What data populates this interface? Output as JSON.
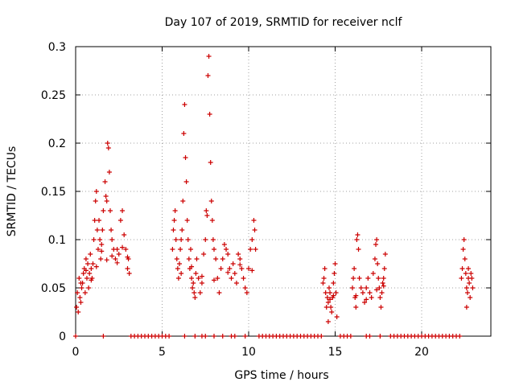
{
  "chart_data": {
    "type": "scatter",
    "title": "Day 107 of 2019, SRMTID for receiver nclf",
    "xlabel": "GPS time / hours",
    "ylabel": "SRMTID / TECUs",
    "xlim": [
      0,
      24
    ],
    "ylim": [
      0,
      0.3
    ],
    "x_ticks": [
      0,
      5,
      10,
      15,
      20
    ],
    "y_ticks": [
      0,
      0.05,
      0.1,
      0.15,
      0.2,
      0.25,
      0.3
    ],
    "x_tick_labels": [
      "0",
      "5",
      "10",
      "15",
      "20"
    ],
    "y_tick_labels": [
      "0",
      "0.05",
      "0.1",
      "0.15",
      "0.2",
      "0.25",
      "0.3"
    ],
    "grid": true,
    "marker": "+",
    "color": "#cc0000",
    "series": [
      {
        "name": "SRMTID",
        "points": [
          [
            0.05,
            0.03
          ],
          [
            0.1,
            0.045
          ],
          [
            0.15,
            0.025
          ],
          [
            0.2,
            0.06
          ],
          [
            0.25,
            0.04
          ],
          [
            0.3,
            0.035
          ],
          [
            0.35,
            0.05
          ],
          [
            0.4,
            0.055
          ],
          [
            0.45,
            0.065
          ],
          [
            0.5,
            0.07
          ],
          [
            0.55,
            0.045
          ],
          [
            0.6,
            0.08
          ],
          [
            0.65,
            0.06
          ],
          [
            0.7,
            0.075
          ],
          [
            0.75,
            0.05
          ],
          [
            0.8,
            0.065
          ],
          [
            0.85,
            0.085
          ],
          [
            0.9,
            0.07
          ],
          [
            0.95,
            0.06
          ],
          [
            1.0,
            0.075
          ],
          [
            1.05,
            0.1
          ],
          [
            1.1,
            0.12
          ],
          [
            1.15,
            0.14
          ],
          [
            1.2,
            0.15
          ],
          [
            1.25,
            0.11
          ],
          [
            1.3,
            0.09
          ],
          [
            1.35,
            0.12
          ],
          [
            1.4,
            0.1
          ],
          [
            1.45,
            0.08
          ],
          [
            1.5,
            0.095
          ],
          [
            1.55,
            0.11
          ],
          [
            1.6,
            0.13
          ],
          [
            1.7,
            0.16
          ],
          [
            1.75,
            0.145
          ],
          [
            1.8,
            0.14
          ],
          [
            1.85,
            0.2
          ],
          [
            1.9,
            0.195
          ],
          [
            1.95,
            0.17
          ],
          [
            2.0,
            0.13
          ],
          [
            2.05,
            0.11
          ],
          [
            2.1,
            0.1
          ],
          [
            2.2,
            0.09
          ],
          [
            2.3,
            0.08
          ],
          [
            2.4,
            0.09
          ],
          [
            2.5,
            0.085
          ],
          [
            2.6,
            0.12
          ],
          [
            2.7,
            0.13
          ],
          [
            2.8,
            0.105
          ],
          [
            2.9,
            0.09
          ],
          [
            3.0,
            0.07
          ],
          [
            3.05,
            0.08
          ],
          [
            3.1,
            0.065
          ],
          [
            0.3,
            0.055
          ],
          [
            0.6,
            0.068
          ],
          [
            0.9,
            0.058
          ],
          [
            1.2,
            0.072
          ],
          [
            1.5,
            0.088
          ],
          [
            1.8,
            0.079
          ],
          [
            2.1,
            0.083
          ],
          [
            2.4,
            0.076
          ],
          [
            2.7,
            0.092
          ],
          [
            3.0,
            0.082
          ],
          [
            5.6,
            0.09
          ],
          [
            5.65,
            0.11
          ],
          [
            5.7,
            0.12
          ],
          [
            5.75,
            0.13
          ],
          [
            5.8,
            0.1
          ],
          [
            5.85,
            0.08
          ],
          [
            5.9,
            0.07
          ],
          [
            5.95,
            0.06
          ],
          [
            6.0,
            0.075
          ],
          [
            6.05,
            0.09
          ],
          [
            6.1,
            0.1
          ],
          [
            6.15,
            0.11
          ],
          [
            6.2,
            0.14
          ],
          [
            6.25,
            0.21
          ],
          [
            6.3,
            0.24
          ],
          [
            6.35,
            0.185
          ],
          [
            6.4,
            0.16
          ],
          [
            6.45,
            0.12
          ],
          [
            6.5,
            0.1
          ],
          [
            6.55,
            0.08
          ],
          [
            6.6,
            0.07
          ],
          [
            6.65,
            0.09
          ],
          [
            6.7,
            0.06
          ],
          [
            6.75,
            0.05
          ],
          [
            6.8,
            0.055
          ],
          [
            6.85,
            0.045
          ],
          [
            6.9,
            0.04
          ],
          [
            6.95,
            0.065
          ],
          [
            7.0,
            0.08
          ],
          [
            7.1,
            0.06
          ],
          [
            7.2,
            0.045
          ],
          [
            7.3,
            0.055
          ],
          [
            7.4,
            0.085
          ],
          [
            7.5,
            0.1
          ],
          [
            7.55,
            0.13
          ],
          [
            7.6,
            0.125
          ],
          [
            7.65,
            0.27
          ],
          [
            7.7,
            0.29
          ],
          [
            7.75,
            0.23
          ],
          [
            7.8,
            0.18
          ],
          [
            7.85,
            0.14
          ],
          [
            7.9,
            0.12
          ],
          [
            7.95,
            0.1
          ],
          [
            8.0,
            0.09
          ],
          [
            8.1,
            0.08
          ],
          [
            8.2,
            0.06
          ],
          [
            8.3,
            0.045
          ],
          [
            8.4,
            0.07
          ],
          [
            8.5,
            0.08
          ],
          [
            8.6,
            0.095
          ],
          [
            8.7,
            0.09
          ],
          [
            8.8,
            0.085
          ],
          [
            8.9,
            0.07
          ],
          [
            9.0,
            0.06
          ],
          [
            9.1,
            0.075
          ],
          [
            9.2,
            0.065
          ],
          [
            9.3,
            0.055
          ],
          [
            9.4,
            0.085
          ],
          [
            9.5,
            0.08
          ],
          [
            9.6,
            0.07
          ],
          [
            9.7,
            0.06
          ],
          [
            9.8,
            0.05
          ],
          [
            9.9,
            0.045
          ],
          [
            10.0,
            0.07
          ],
          [
            10.1,
            0.09
          ],
          [
            10.2,
            0.1
          ],
          [
            10.3,
            0.12
          ],
          [
            10.35,
            0.11
          ],
          [
            10.4,
            0.09
          ],
          [
            6.1,
            0.065
          ],
          [
            6.7,
            0.072
          ],
          [
            7.3,
            0.062
          ],
          [
            8.0,
            0.058
          ],
          [
            8.8,
            0.066
          ],
          [
            9.5,
            0.074
          ],
          [
            10.2,
            0.068
          ],
          [
            14.3,
            0.055
          ],
          [
            14.35,
            0.06
          ],
          [
            14.4,
            0.07
          ],
          [
            14.45,
            0.045
          ],
          [
            14.5,
            0.03
          ],
          [
            14.55,
            0.04
          ],
          [
            14.6,
            0.035
          ],
          [
            14.65,
            0.05
          ],
          [
            14.7,
            0.045
          ],
          [
            14.75,
            0.03
          ],
          [
            14.8,
            0.025
          ],
          [
            14.85,
            0.04
          ],
          [
            14.9,
            0.055
          ],
          [
            14.95,
            0.065
          ],
          [
            15.0,
            0.075
          ],
          [
            15.05,
            0.045
          ],
          [
            15.1,
            0.02
          ],
          [
            14.6,
            0.015
          ],
          [
            14.7,
            0.038
          ],
          [
            14.9,
            0.042
          ],
          [
            16.0,
            0.05
          ],
          [
            16.05,
            0.06
          ],
          [
            16.1,
            0.07
          ],
          [
            16.15,
            0.04
          ],
          [
            16.2,
            0.03
          ],
          [
            16.25,
            0.1
          ],
          [
            16.3,
            0.105
          ],
          [
            16.35,
            0.09
          ],
          [
            16.4,
            0.06
          ],
          [
            16.5,
            0.05
          ],
          [
            16.6,
            0.045
          ],
          [
            16.7,
            0.035
          ],
          [
            16.8,
            0.05
          ],
          [
            16.9,
            0.06
          ],
          [
            17.0,
            0.045
          ],
          [
            17.1,
            0.04
          ],
          [
            17.2,
            0.065
          ],
          [
            17.3,
            0.08
          ],
          [
            17.35,
            0.095
          ],
          [
            17.4,
            0.1
          ],
          [
            17.45,
            0.075
          ],
          [
            17.5,
            0.06
          ],
          [
            17.55,
            0.05
          ],
          [
            17.6,
            0.04
          ],
          [
            17.65,
            0.03
          ],
          [
            17.7,
            0.045
          ],
          [
            17.75,
            0.055
          ],
          [
            17.8,
            0.06
          ],
          [
            17.85,
            0.07
          ],
          [
            17.9,
            0.085
          ],
          [
            16.2,
            0.042
          ],
          [
            16.8,
            0.038
          ],
          [
            17.4,
            0.048
          ],
          [
            17.8,
            0.052
          ],
          [
            22.3,
            0.06
          ],
          [
            22.35,
            0.07
          ],
          [
            22.4,
            0.09
          ],
          [
            22.45,
            0.1
          ],
          [
            22.5,
            0.08
          ],
          [
            22.55,
            0.065
          ],
          [
            22.6,
            0.05
          ],
          [
            22.65,
            0.045
          ],
          [
            22.7,
            0.06
          ],
          [
            22.75,
            0.055
          ],
          [
            22.8,
            0.04
          ],
          [
            22.85,
            0.065
          ],
          [
            22.9,
            0.06
          ],
          [
            22.95,
            0.05
          ],
          [
            22.6,
            0.03
          ],
          [
            22.7,
            0.07
          ],
          [
            0.0,
            0.0
          ],
          [
            1.6,
            0.0
          ],
          [
            3.2,
            0.0
          ],
          [
            3.4,
            0.0
          ],
          [
            3.6,
            0.0
          ],
          [
            3.8,
            0.0
          ],
          [
            4.0,
            0.0
          ],
          [
            4.2,
            0.0
          ],
          [
            4.4,
            0.0
          ],
          [
            4.6,
            0.0
          ],
          [
            4.8,
            0.0
          ],
          [
            5.0,
            0.0
          ],
          [
            5.2,
            0.0
          ],
          [
            5.4,
            0.0
          ],
          [
            6.3,
            0.0
          ],
          [
            6.9,
            0.0
          ],
          [
            7.3,
            0.0
          ],
          [
            7.5,
            0.0
          ],
          [
            8.0,
            0.0
          ],
          [
            8.5,
            0.0
          ],
          [
            9.0,
            0.0
          ],
          [
            9.2,
            0.0
          ],
          [
            9.8,
            0.0
          ],
          [
            10.6,
            0.0
          ],
          [
            10.8,
            0.0
          ],
          [
            11.0,
            0.0
          ],
          [
            11.2,
            0.0
          ],
          [
            11.4,
            0.0
          ],
          [
            11.6,
            0.0
          ],
          [
            11.8,
            0.0
          ],
          [
            12.0,
            0.0
          ],
          [
            12.2,
            0.0
          ],
          [
            12.4,
            0.0
          ],
          [
            12.6,
            0.0
          ],
          [
            12.8,
            0.0
          ],
          [
            13.0,
            0.0
          ],
          [
            13.2,
            0.0
          ],
          [
            13.4,
            0.0
          ],
          [
            13.6,
            0.0
          ],
          [
            13.8,
            0.0
          ],
          [
            14.0,
            0.0
          ],
          [
            14.2,
            0.0
          ],
          [
            15.3,
            0.0
          ],
          [
            15.5,
            0.0
          ],
          [
            15.7,
            0.0
          ],
          [
            15.9,
            0.0
          ],
          [
            16.8,
            0.0
          ],
          [
            17.0,
            0.0
          ],
          [
            17.6,
            0.0
          ],
          [
            18.2,
            0.0
          ],
          [
            18.4,
            0.0
          ],
          [
            18.6,
            0.0
          ],
          [
            18.8,
            0.0
          ],
          [
            19.0,
            0.0
          ],
          [
            19.2,
            0.0
          ],
          [
            19.4,
            0.0
          ],
          [
            19.6,
            0.0
          ],
          [
            19.8,
            0.0
          ],
          [
            20.0,
            0.0
          ],
          [
            20.2,
            0.0
          ],
          [
            20.4,
            0.0
          ],
          [
            20.6,
            0.0
          ],
          [
            20.8,
            0.0
          ],
          [
            21.0,
            0.0
          ],
          [
            21.2,
            0.0
          ],
          [
            21.4,
            0.0
          ],
          [
            21.6,
            0.0
          ],
          [
            21.8,
            0.0
          ],
          [
            22.0,
            0.0
          ],
          [
            22.2,
            0.0
          ]
        ]
      }
    ]
  }
}
